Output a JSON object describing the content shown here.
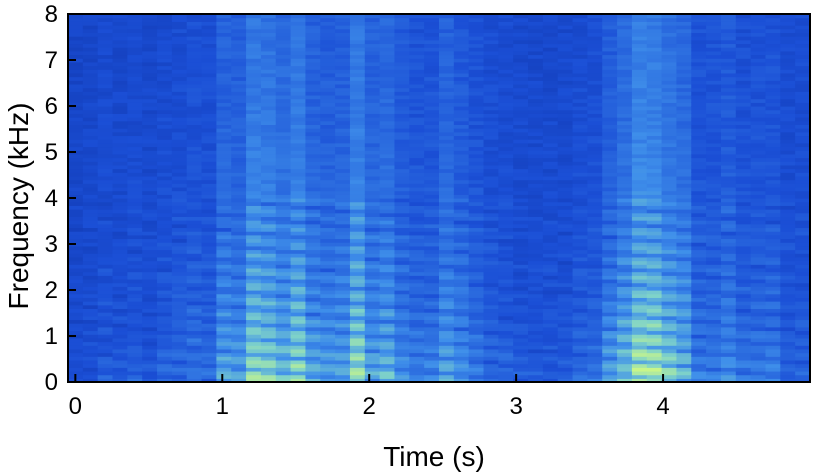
{
  "chart_data": {
    "type": "heatmap",
    "title": "",
    "xlabel": "Time (s)",
    "ylabel": "Frequency (kHz)",
    "xlim": [
      -0.05,
      5.0
    ],
    "ylim": [
      0,
      8
    ],
    "x_ticks": [
      "0",
      "1",
      "2",
      "3",
      "4"
    ],
    "y_ticks": [
      "0",
      "1",
      "2",
      "3",
      "4",
      "5",
      "6",
      "7",
      "8"
    ],
    "colormap": [
      "#0a2a9a",
      "#1b4fd6",
      "#3f8fea",
      "#7fd3c9",
      "#c8f58a"
    ],
    "time_bins": 50,
    "freq_bins": 100,
    "energy_envelope": [
      [
        0.0,
        0.15
      ],
      [
        0.5,
        0.22
      ],
      [
        0.9,
        0.35
      ],
      [
        1.05,
        0.6
      ],
      [
        1.2,
        0.85
      ],
      [
        1.35,
        0.95
      ],
      [
        1.55,
        0.8
      ],
      [
        1.75,
        0.55
      ],
      [
        1.9,
        0.85
      ],
      [
        2.1,
        0.6
      ],
      [
        2.35,
        0.5
      ],
      [
        2.6,
        0.55
      ],
      [
        2.8,
        0.35
      ],
      [
        3.1,
        0.2
      ],
      [
        3.4,
        0.25
      ],
      [
        3.65,
        0.5
      ],
      [
        3.8,
        0.9
      ],
      [
        3.95,
        0.95
      ],
      [
        4.1,
        0.7
      ],
      [
        4.3,
        0.4
      ],
      [
        4.6,
        0.45
      ],
      [
        5.0,
        0.25
      ]
    ]
  }
}
